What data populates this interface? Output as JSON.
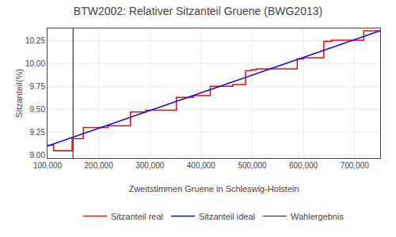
{
  "chart_data": {
    "type": "line",
    "title": "BTW2002: Relativer Sitzanteil Gruene (BWG2013)",
    "xlabel": "Zweitstimmen Gruene in Schleswig-Holstein",
    "ylabel": "Sitzanteil(%)",
    "series": [
      {
        "name": "Sitzanteil real",
        "color": "#ff0000",
        "x": [
          100000,
          112000,
          112000,
          148000,
          148000,
          170000,
          170000,
          218000,
          218000,
          262000,
          262000,
          292000,
          292000,
          305000,
          305000,
          352000,
          352000,
          385000,
          385000,
          418000,
          418000,
          428000,
          428000,
          462000,
          462000,
          487000,
          487000,
          498000,
          498000,
          508000,
          508000,
          548000,
          548000,
          588000,
          588000,
          600000,
          600000,
          640000,
          640000,
          655000,
          655000,
          690000,
          690000,
          718000,
          718000,
          750000
        ],
        "values": [
          9.11,
          9.11,
          9.05,
          9.05,
          9.18,
          9.18,
          9.3,
          9.3,
          9.32,
          9.32,
          9.47,
          9.47,
          9.49,
          9.49,
          9.49,
          9.49,
          9.63,
          9.63,
          9.65,
          9.65,
          9.75,
          9.75,
          9.75,
          9.75,
          9.77,
          9.77,
          9.92,
          9.92,
          9.93,
          9.93,
          9.94,
          9.94,
          9.94,
          9.94,
          10.05,
          10.05,
          10.06,
          10.06,
          10.24,
          10.24,
          10.25,
          10.25,
          10.25,
          10.25,
          10.355,
          10.355
        ]
      },
      {
        "name": "Sitzanteil ideal",
        "color": "#0000ff",
        "x": [
          100000,
          750000
        ],
        "values": [
          9.1,
          10.355
        ]
      },
      {
        "name": "Wahlergebnis",
        "type": "vline",
        "color": "#333333",
        "x": 150000
      }
    ],
    "xlim": [
      100000,
      750000
    ],
    "ylim": [
      8.97,
      10.38
    ],
    "xticks": [
      {
        "value": 100000,
        "label": "100,000"
      },
      {
        "value": 200000,
        "label": "200,000"
      },
      {
        "value": 300000,
        "label": "300,000"
      },
      {
        "value": 400000,
        "label": "400,000"
      },
      {
        "value": 500000,
        "label": "500,000"
      },
      {
        "value": 600000,
        "label": "600,000"
      },
      {
        "value": 700000,
        "label": "700,000"
      }
    ],
    "yticks": [
      {
        "value": 9.0,
        "label": "9.00"
      },
      9.25,
      {
        "value": 9.5,
        "label": "9.50"
      },
      9.75,
      {
        "value": 10.0,
        "label": "10.00"
      },
      10.25
    ],
    "grid": true,
    "legend": "bottom"
  }
}
